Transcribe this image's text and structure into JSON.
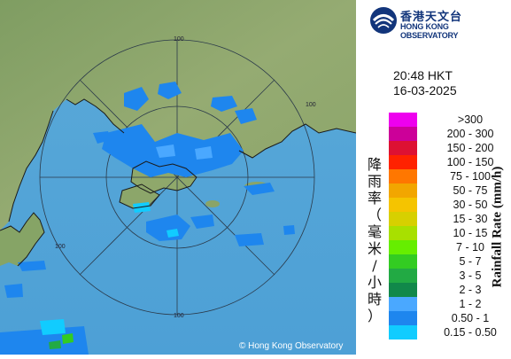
{
  "logo": {
    "icon": "hko-swirl-logo",
    "name_zh": "香港天文台",
    "name_en": "HONG KONG OBSERVATORY"
  },
  "timestamp": {
    "time": "20:48 HKT",
    "date": "16-03-2025"
  },
  "legend": {
    "axis_label_zh": "降雨率（毫米/小時）",
    "axis_label_en": "Rainfall Rate (mm/h)",
    "items": [
      {
        "label": ">300",
        "color": "#ee00ee"
      },
      {
        "label": "200 - 300",
        "color": "#cc0099"
      },
      {
        "label": "150 - 200",
        "color": "#dd1133"
      },
      {
        "label": "100 - 150",
        "color": "#ff2200"
      },
      {
        "label": "75 - 100",
        "color": "#ff7700"
      },
      {
        "label": "50 - 75",
        "color": "#f2a600"
      },
      {
        "label": "30 - 50",
        "color": "#f5c400"
      },
      {
        "label": "15 - 30",
        "color": "#d7d000"
      },
      {
        "label": "10 - 15",
        "color": "#a8e000"
      },
      {
        "label": "7 - 10",
        "color": "#66ee00"
      },
      {
        "label": "5 - 7",
        "color": "#33cc22"
      },
      {
        "label": "3 - 5",
        "color": "#22aa44"
      },
      {
        "label": "2 - 3",
        "color": "#11884a"
      },
      {
        "label": "1 - 2",
        "color": "#4aa8ff"
      },
      {
        "label": "0.50 - 1",
        "color": "#1e86ee"
      },
      {
        "label": "0.15 - 0.50",
        "color": "#11ccff"
      }
    ]
  },
  "map": {
    "copyright": "© Hong Kong Observatory",
    "range_ring_labels": [
      "100",
      "100",
      "100",
      "100"
    ],
    "colors": {
      "sea": "#4fa8dd",
      "land": "#8aa96a",
      "rain_light": "#1e86ee"
    }
  }
}
